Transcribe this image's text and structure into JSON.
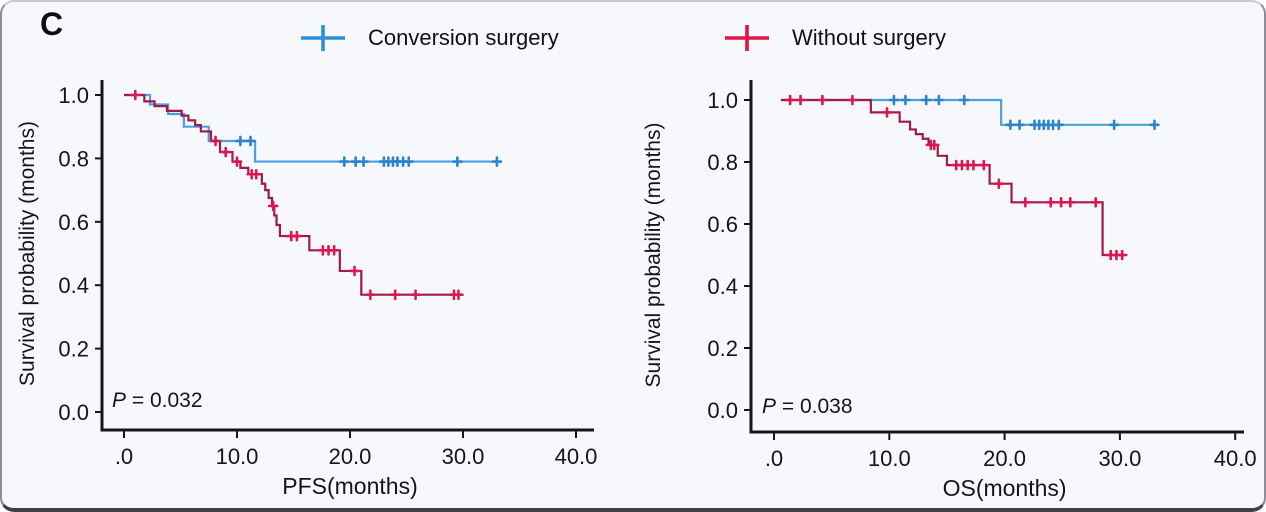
{
  "panel_label": "C",
  "legend": {
    "items": [
      {
        "label": "Conversion surgery",
        "color": "#2e8fd8"
      },
      {
        "label": "Without surgery",
        "color": "#dc1646"
      }
    ]
  },
  "chart_data": [
    {
      "type": "line",
      "subtype": "kaplan-meier-step",
      "xlabel": "PFS(months)",
      "ylabel": "Survival probability (months)",
      "p_value": "P = 0.032",
      "xticks": [
        0,
        10,
        20,
        30,
        40
      ],
      "xtick_labels": [
        ".0",
        "10.0",
        "20.0",
        "30.0",
        "40.0"
      ],
      "yticks": [
        0.0,
        0.2,
        0.4,
        0.6,
        0.8,
        1.0
      ],
      "ytick_labels": [
        "0.0",
        "0.2",
        "0.4",
        "0.6",
        "0.8",
        "1.0"
      ],
      "xlim": [
        0,
        40
      ],
      "ylim": [
        0,
        1.0
      ],
      "grid": false,
      "legend_position": "top",
      "series": [
        {
          "name": "Conversion surgery",
          "color": "#4aa0e2",
          "marker_color": "#2a84d0",
          "steps": [
            [
              0,
              1.0
            ],
            [
              2.3,
              0.97
            ],
            [
              3.9,
              0.94
            ],
            [
              5.3,
              0.9
            ],
            [
              7.5,
              0.855
            ],
            [
              11.6,
              0.79
            ],
            [
              33,
              0.79
            ]
          ],
          "censors": [
            [
              10.3,
              0.855
            ],
            [
              11.2,
              0.855
            ],
            [
              19.5,
              0.79
            ],
            [
              20.5,
              0.79
            ],
            [
              21.2,
              0.79
            ],
            [
              23.0,
              0.79
            ],
            [
              23.4,
              0.79
            ],
            [
              23.8,
              0.79
            ],
            [
              24.2,
              0.79
            ],
            [
              24.7,
              0.79
            ],
            [
              25.2,
              0.79
            ],
            [
              29.5,
              0.79
            ],
            [
              33,
              0.79
            ]
          ]
        },
        {
          "name": "Without surgery",
          "color": "#a01c48",
          "marker_color": "#d91950",
          "steps": [
            [
              0,
              1.0
            ],
            [
              1.8,
              0.98
            ],
            [
              2.7,
              0.965
            ],
            [
              3.8,
              0.95
            ],
            [
              5.1,
              0.935
            ],
            [
              5.7,
              0.92
            ],
            [
              6.3,
              0.905
            ],
            [
              6.8,
              0.885
            ],
            [
              7.7,
              0.855
            ],
            [
              8.5,
              0.82
            ],
            [
              9.6,
              0.79
            ],
            [
              10.3,
              0.77
            ],
            [
              11.0,
              0.75
            ],
            [
              12.2,
              0.72
            ],
            [
              12.5,
              0.7
            ],
            [
              12.8,
              0.675
            ],
            [
              13.1,
              0.65
            ],
            [
              13.3,
              0.62
            ],
            [
              13.5,
              0.59
            ],
            [
              13.8,
              0.555
            ],
            [
              16.4,
              0.51
            ],
            [
              19.1,
              0.445
            ],
            [
              21.0,
              0.37
            ],
            [
              29.9,
              0.37
            ]
          ],
          "censors": [
            [
              1.0,
              1.0
            ],
            [
              8.1,
              0.855
            ],
            [
              9.0,
              0.82
            ],
            [
              10.0,
              0.79
            ],
            [
              11.3,
              0.75
            ],
            [
              11.7,
              0.75
            ],
            [
              13.2,
              0.65
            ],
            [
              14.8,
              0.555
            ],
            [
              15.3,
              0.555
            ],
            [
              17.6,
              0.51
            ],
            [
              18.1,
              0.51
            ],
            [
              18.6,
              0.51
            ],
            [
              20.4,
              0.445
            ],
            [
              21.8,
              0.37
            ],
            [
              24.0,
              0.37
            ],
            [
              25.8,
              0.37
            ],
            [
              29.2,
              0.37
            ],
            [
              29.6,
              0.37
            ]
          ]
        }
      ]
    },
    {
      "type": "line",
      "subtype": "kaplan-meier-step",
      "xlabel": "OS(months)",
      "ylabel": "Survival probability (months)",
      "p_value": "P = 0.038",
      "xticks": [
        0,
        10,
        20,
        30,
        40
      ],
      "xtick_labels": [
        ".0",
        "10.0",
        "20.0",
        "30.0",
        "40.0"
      ],
      "yticks": [
        0.0,
        0.2,
        0.4,
        0.6,
        0.8,
        1.0
      ],
      "ytick_labels": [
        "0.0",
        "0.2",
        "0.4",
        "0.6",
        "0.8",
        "1.0"
      ],
      "xlim": [
        0,
        40
      ],
      "ylim": [
        0,
        1.0
      ],
      "grid": false,
      "legend_position": "top",
      "series": [
        {
          "name": "Conversion surgery",
          "color": "#4aa0e2",
          "marker_color": "#2a84d0",
          "steps": [
            [
              0.6,
              1.0
            ],
            [
              19.7,
              0.92
            ],
            [
              33,
              0.92
            ]
          ],
          "censors": [
            [
              10.4,
              1.0
            ],
            [
              11.4,
              1.0
            ],
            [
              13.2,
              1.0
            ],
            [
              14.3,
              1.0
            ],
            [
              16.5,
              1.0
            ],
            [
              20.5,
              0.92
            ],
            [
              21.3,
              0.92
            ],
            [
              22.6,
              0.92
            ],
            [
              23.0,
              0.92
            ],
            [
              23.4,
              0.92
            ],
            [
              23.8,
              0.92
            ],
            [
              24.2,
              0.92
            ],
            [
              24.7,
              0.92
            ],
            [
              29.5,
              0.92
            ],
            [
              33,
              0.92
            ]
          ]
        },
        {
          "name": "Without surgery",
          "color": "#a01c48",
          "marker_color": "#d91950",
          "steps": [
            [
              0.6,
              1.0
            ],
            [
              8.4,
              0.96
            ],
            [
              10.9,
              0.93
            ],
            [
              11.8,
              0.905
            ],
            [
              12.3,
              0.89
            ],
            [
              12.9,
              0.875
            ],
            [
              13.4,
              0.855
            ],
            [
              14.2,
              0.82
            ],
            [
              15.0,
              0.79
            ],
            [
              18.7,
              0.73
            ],
            [
              20.6,
              0.67
            ],
            [
              28.5,
              0.5
            ],
            [
              30.3,
              0.5
            ]
          ],
          "censors": [
            [
              1.4,
              1.0
            ],
            [
              2.3,
              1.0
            ],
            [
              4.2,
              1.0
            ],
            [
              6.8,
              1.0
            ],
            [
              9.8,
              0.96
            ],
            [
              13.6,
              0.855
            ],
            [
              13.9,
              0.855
            ],
            [
              15.8,
              0.79
            ],
            [
              16.3,
              0.79
            ],
            [
              16.8,
              0.79
            ],
            [
              17.3,
              0.79
            ],
            [
              18.2,
              0.79
            ],
            [
              19.5,
              0.73
            ],
            [
              21.8,
              0.67
            ],
            [
              24.0,
              0.67
            ],
            [
              24.9,
              0.67
            ],
            [
              25.7,
              0.67
            ],
            [
              27.9,
              0.67
            ],
            [
              29.2,
              0.5
            ],
            [
              29.7,
              0.5
            ],
            [
              30.2,
              0.5
            ]
          ]
        }
      ]
    }
  ]
}
